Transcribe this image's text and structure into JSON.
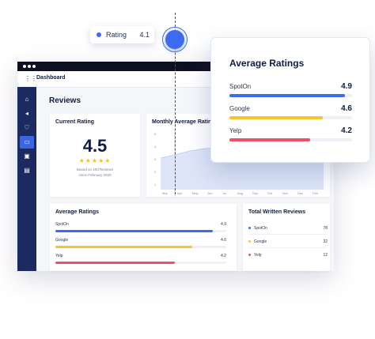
{
  "tooltip": {
    "label": "Rating",
    "value": "4.1"
  },
  "window": {
    "nav_title": "Dashboard",
    "page_title": "Reviews",
    "sidebar_icons": [
      "home-icon",
      "megaphone-icon",
      "heart-icon",
      "chat-icon",
      "document-icon",
      "clipboard-icon"
    ]
  },
  "current_rating": {
    "title": "Current Rating",
    "value": "4.5",
    "stars": "★★★★★",
    "based_on": "Based on 100 Reviews",
    "since": "since February 2020"
  },
  "monthly": {
    "title": "Monthly Average Rating",
    "y_ticks": [
      "5",
      "4",
      "3",
      "2",
      "1"
    ],
    "x_ticks": [
      "Mar",
      "Apr",
      "May",
      "Jun",
      "Jul",
      "Aug",
      "Sep",
      "Oct",
      "Nov",
      "Dec",
      "Feb"
    ]
  },
  "average_ratings": {
    "title": "Average Ratings",
    "rows": [
      {
        "label": "SpotOn",
        "value": "4.9",
        "fraction": 0.92,
        "color": "#3d6af0"
      },
      {
        "label": "Google",
        "value": "4.6",
        "fraction": 0.8,
        "color": "#f5c431"
      },
      {
        "label": "Yelp",
        "value": "4.2",
        "fraction": 0.7,
        "color": "#ef4f6a"
      }
    ]
  },
  "total_written": {
    "title": "Total Written Reviews",
    "rows": [
      {
        "label": "SpotOn",
        "value": "78",
        "color": "#3d6af0"
      },
      {
        "label": "Google",
        "value": "32",
        "color": "#f5c431"
      },
      {
        "label": "Yelp",
        "value": "12",
        "color": "#ef4f6a"
      }
    ]
  },
  "popup": {
    "title": "Average Ratings",
    "rows": [
      {
        "label": "SpotOn",
        "value": "4.9",
        "fraction": 0.94,
        "color": "#3d6af0"
      },
      {
        "label": "Google",
        "value": "4.6",
        "fraction": 0.76,
        "color": "#f5c431"
      },
      {
        "label": "Yelp",
        "value": "4.2",
        "fraction": 0.66,
        "color": "#ef4f6a"
      }
    ]
  }
}
